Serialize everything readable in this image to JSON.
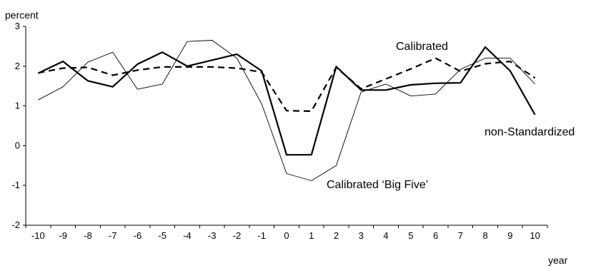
{
  "chart_data": {
    "type": "line",
    "ylabel": "percent",
    "xlabel": "year",
    "ylim": [
      -2,
      3
    ],
    "xlim": [
      -10,
      10
    ],
    "y_ticks": [
      "3",
      "2",
      "1",
      "0",
      "-1",
      "-2"
    ],
    "x_ticks": [
      "-10",
      "-9",
      "-8",
      "-7",
      "-6",
      "-5",
      "-4",
      "-3",
      "-2",
      "-1",
      "0",
      "1",
      "2",
      "3",
      "4",
      "5",
      "6",
      "7",
      "8",
      "9",
      "10"
    ],
    "grid": false,
    "legend": "none",
    "x": [
      -10,
      -9,
      -8,
      -7,
      -6,
      -5,
      -4,
      -3,
      -2,
      -1,
      0,
      1,
      2,
      3,
      4,
      5,
      6,
      7,
      8,
      9,
      10
    ],
    "series": [
      {
        "key": "calibrated",
        "style": "dashed-thick",
        "color": "#000000",
        "values": [
          1.83,
          1.95,
          1.97,
          1.77,
          1.9,
          1.98,
          1.98,
          1.98,
          1.95,
          1.85,
          0.88,
          0.87,
          1.97,
          1.43,
          1.68,
          1.93,
          2.2,
          1.87,
          2.06,
          2.12,
          1.7
        ]
      },
      {
        "key": "non_standardized",
        "style": "solid-thick",
        "color": "#000000",
        "values": [
          1.82,
          2.12,
          1.63,
          1.48,
          2.05,
          2.35,
          2.0,
          2.15,
          2.3,
          1.88,
          -0.23,
          -0.23,
          1.99,
          1.4,
          1.4,
          1.53,
          1.57,
          1.58,
          2.48,
          1.88,
          0.78
        ]
      },
      {
        "key": "calibrated_big_five",
        "style": "solid-thin",
        "color": "#000000",
        "values": [
          1.15,
          1.48,
          2.1,
          2.35,
          1.42,
          1.55,
          2.62,
          2.65,
          2.2,
          1.05,
          -0.7,
          -0.88,
          -0.5,
          1.35,
          1.55,
          1.25,
          1.3,
          1.92,
          2.2,
          2.2,
          1.55
        ]
      }
    ],
    "annotations": [
      {
        "text": "Calibrated",
        "series": "calibrated"
      },
      {
        "text": "non-Standardized",
        "series": "non_standardized"
      },
      {
        "text": "Calibrated ‘Big Five’",
        "series": "calibrated_big_five"
      }
    ]
  }
}
